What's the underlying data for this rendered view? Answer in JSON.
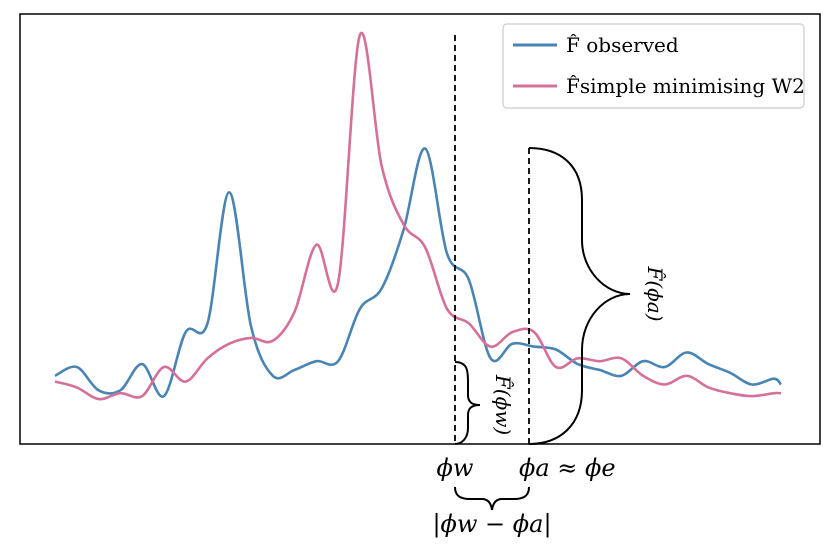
{
  "chart_data": {
    "type": "line",
    "title": "",
    "xlabel": "",
    "ylabel": "",
    "grid": false,
    "legend": {
      "placement": "top-right",
      "entries": [
        {
          "label": "F̂ observed",
          "color": "#4a84b5"
        },
        {
          "label": "F̂simple minimising W2",
          "color": "#d4709a"
        }
      ]
    },
    "x_range": [
      0,
      100
    ],
    "y_range": [
      0,
      100
    ],
    "series": [
      {
        "name": "F̂ observed",
        "color": "#4a84b5",
        "x": [
          0,
          3,
          6,
          9,
          12,
          15,
          18,
          21,
          24,
          27,
          30,
          33,
          36,
          39,
          42,
          45,
          48,
          51,
          54,
          57,
          60,
          63,
          66,
          69,
          72,
          75,
          78,
          81,
          84,
          87,
          90,
          93,
          96,
          99,
          100
        ],
        "y": [
          20,
          23,
          15,
          15,
          24,
          13,
          35,
          38,
          83,
          37,
          20,
          22,
          25,
          25,
          43,
          50,
          70,
          98,
          62,
          53,
          26,
          31,
          30,
          29,
          24,
          22,
          20,
          25,
          23,
          28,
          24,
          21,
          17,
          19,
          17
        ]
      },
      {
        "name": "F̂simple minimising W2",
        "color": "#d4709a",
        "x": [
          0,
          3,
          6,
          9,
          12,
          15,
          18,
          21,
          24,
          27,
          30,
          33,
          36,
          39,
          42,
          45,
          48,
          51,
          54,
          57,
          60,
          63,
          66,
          69,
          72,
          75,
          78,
          81,
          84,
          87,
          90,
          93,
          96,
          99,
          100
        ],
        "y": [
          18,
          16,
          12,
          14,
          13,
          23,
          18,
          26,
          31,
          33,
          32,
          42,
          65,
          52,
          137,
          92,
          72,
          64,
          43,
          38,
          30,
          35,
          35,
          23,
          26,
          25,
          26,
          20,
          17,
          20,
          16,
          14,
          13,
          14,
          14
        ]
      }
    ],
    "annotations": {
      "phi_w": "ϕw",
      "phi_a_approx": "ϕa ≈ ϕe",
      "difference": "|ϕw − ϕa|",
      "F_phi_w": "F̂(ϕw)",
      "F_phi_a": "F̂(ϕa)"
    }
  }
}
